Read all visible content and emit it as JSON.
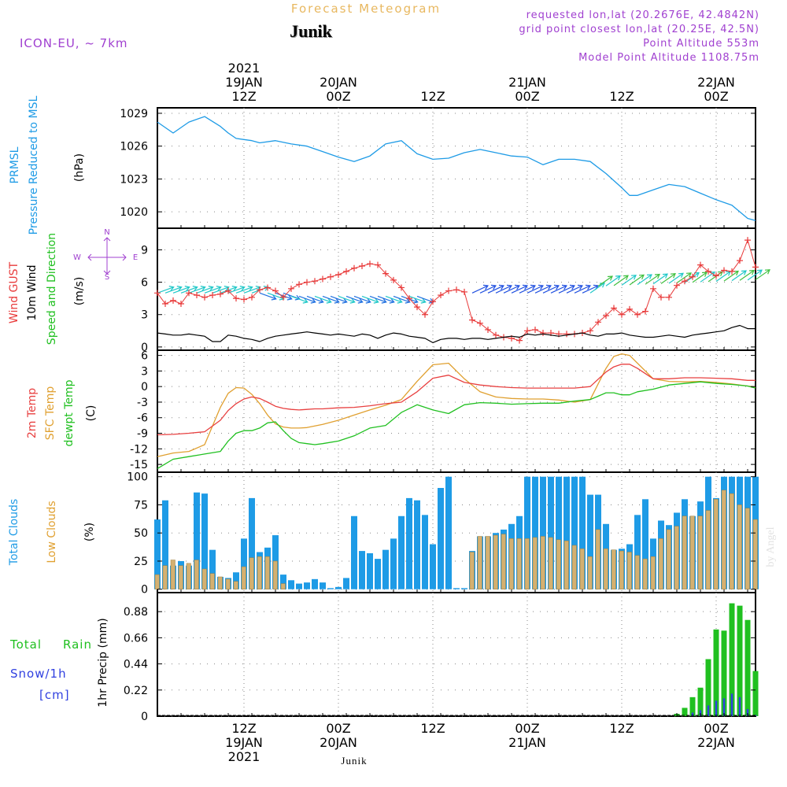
{
  "header": {
    "title": "Forecast Meteogram",
    "location": "Junik",
    "model": "ICON-EU, ~ 7km",
    "requested": "requested lon,lat (20.2676E, 42.4842N)",
    "gridpoint": "grid point closest lon,lat (20.25E, 42.5N)",
    "point_altitude": "Point Altitude 553m",
    "model_altitude": "Model Point Altitude 1108.75m",
    "footer_location": "Junik",
    "watermark": "by Angel"
  },
  "time_axis": {
    "top_year": "2021",
    "top_labels": [
      {
        "line1": "19JAN",
        "line2": "12Z",
        "hour": 18
      },
      {
        "line1": "20JAN",
        "line2": "00Z",
        "hour": 30
      },
      {
        "line1": "",
        "line2": "12Z",
        "hour": 42
      },
      {
        "line1": "21JAN",
        "line2": "00Z",
        "hour": 54
      },
      {
        "line1": "",
        "line2": "12Z",
        "hour": 66
      },
      {
        "line1": "22JAN",
        "line2": "00Z",
        "hour": 78
      }
    ],
    "bottom_labels": [
      {
        "line1": "12Z",
        "line2": "19JAN",
        "line3": "2021",
        "hour": 18
      },
      {
        "line1": "00Z",
        "line2": "20JAN",
        "line3": "",
        "hour": 30
      },
      {
        "line1": "12Z",
        "line2": "",
        "line3": "",
        "hour": 42
      },
      {
        "line1": "00Z",
        "line2": "21JAN",
        "line3": "",
        "hour": 54
      },
      {
        "line1": "12Z",
        "line2": "",
        "line3": "",
        "hour": 66
      },
      {
        "line1": "00Z",
        "line2": "22JAN",
        "line3": "",
        "hour": 78
      }
    ],
    "range_hours": [
      7,
      83
    ]
  },
  "panels": {
    "pressure": {
      "label1": "PRMSL",
      "label2": "Pressure Reduced to MSL",
      "unit": "(hPa)",
      "ticks": [
        "1020",
        "1023",
        "1026",
        "1029"
      ]
    },
    "wind": {
      "label_gust": "Wind GUST",
      "label_wind": "10m Wind",
      "label_speed": "Speed and Direction",
      "unit": "(m/s)",
      "compass_n": "N",
      "compass_s": "S",
      "compass_w": "W",
      "compass_e": "E",
      "ticks": [
        "0",
        "3",
        "6",
        "9"
      ]
    },
    "temp": {
      "label_2m": "2m Temp",
      "label_sfc": "SFC Temp",
      "label_dewpt": "dewpt Temp",
      "unit": "(C)",
      "ticks": [
        "-15",
        "-12",
        "-9",
        "-6",
        "-3",
        "0",
        "3",
        "6"
      ]
    },
    "clouds": {
      "label_total": "Total Clouds",
      "label_low": "Low Clouds",
      "unit": "(%)",
      "ticks": [
        "0",
        "25",
        "50",
        "75",
        "100"
      ]
    },
    "precip": {
      "label_total": "Total",
      "label_rain": "Rain",
      "label_snow": "Snow/1h",
      "label_cm": "[cm]",
      "unit": "1hr Precip (mm)",
      "ticks": [
        "0",
        "0.22",
        "0.44",
        "0.66",
        "0.88"
      ]
    }
  },
  "colors": {
    "pressure": "#1e9be6",
    "gust": "#e83a3a",
    "wind": "#000000",
    "temp2m": "#e84040",
    "sfc": "#e0a030",
    "dewpt": "#20c020",
    "total_cloud": "#1e9be6",
    "low_cloud": "#d4b070",
    "rain": "#20c020",
    "snow": "#3040e0",
    "purple": "#a040d0"
  },
  "chart_data": [
    {
      "type": "line",
      "title": "PRMSL Pressure Reduced to MSL",
      "ylabel": "(hPa)",
      "ylim": [
        1018.5,
        1029.5
      ],
      "x": [
        7,
        9,
        11,
        13,
        15,
        16,
        17,
        18,
        19,
        20,
        22,
        24,
        26,
        28,
        30,
        32,
        34,
        36,
        38,
        40,
        42,
        44,
        46,
        48,
        50,
        52,
        54,
        56,
        58,
        60,
        62,
        64,
        66,
        67,
        68,
        70,
        72,
        74,
        76,
        78,
        80,
        82,
        83
      ],
      "series": [
        {
          "name": "PRMSL",
          "values": [
            1028.2,
            1027.2,
            1028.2,
            1028.7,
            1027.8,
            1027.2,
            1026.7,
            1026.6,
            1026.5,
            1026.3,
            1026.5,
            1026.2,
            1026.0,
            1025.5,
            1025.0,
            1024.6,
            1025.1,
            1026.2,
            1026.5,
            1025.3,
            1024.8,
            1024.9,
            1025.4,
            1025.7,
            1025.4,
            1025.1,
            1025.0,
            1024.3,
            1024.8,
            1024.8,
            1024.6,
            1023.5,
            1022.2,
            1021.5,
            1021.5,
            1022.0,
            1022.5,
            1022.3,
            1021.7,
            1021.1,
            1020.6,
            1019.4,
            1019.2
          ]
        }
      ]
    },
    {
      "type": "line",
      "title": "Wind GUST / 10m Wind Speed and Direction",
      "ylabel": "(m/s)",
      "ylim": [
        -0.3,
        11
      ],
      "x": [
        7,
        8,
        9,
        10,
        11,
        12,
        13,
        14,
        15,
        16,
        17,
        18,
        19,
        20,
        21,
        22,
        23,
        24,
        25,
        26,
        27,
        28,
        29,
        30,
        31,
        32,
        33,
        34,
        35,
        36,
        37,
        38,
        39,
        40,
        41,
        42,
        43,
        44,
        45,
        46,
        47,
        48,
        49,
        50,
        51,
        52,
        53,
        54,
        55,
        56,
        57,
        58,
        59,
        60,
        61,
        62,
        63,
        64,
        65,
        66,
        67,
        68,
        69,
        70,
        71,
        72,
        73,
        74,
        75,
        76,
        77,
        78,
        79,
        80,
        81,
        82,
        83
      ],
      "series": [
        {
          "name": "Wind GUST",
          "values": [
            5.0,
            4.0,
            4.3,
            4.0,
            5.0,
            4.8,
            4.6,
            4.8,
            4.9,
            5.2,
            4.5,
            4.4,
            4.6,
            5.3,
            5.5,
            5.2,
            4.6,
            5.4,
            5.8,
            6.0,
            6.1,
            6.3,
            6.5,
            6.7,
            7.0,
            7.3,
            7.5,
            7.7,
            7.6,
            6.8,
            6.2,
            5.5,
            4.5,
            3.7,
            3.0,
            4.2,
            4.8,
            5.2,
            5.3,
            5.1,
            2.5,
            2.2,
            1.6,
            1.1,
            0.9,
            0.8,
            0.6,
            1.5,
            1.6,
            1.3,
            1.3,
            1.2,
            1.2,
            1.2,
            1.3,
            1.5,
            2.3,
            2.9,
            3.6,
            3.0,
            3.5,
            3.0,
            3.3,
            5.4,
            4.6,
            4.6,
            5.7,
            6.1,
            6.5,
            7.6,
            7.0,
            6.6,
            7.1,
            7.0,
            8.0,
            9.9,
            7.4
          ]
        },
        {
          "name": "10m Wind",
          "values": [
            1.3,
            1.2,
            1.1,
            1.1,
            1.2,
            1.1,
            1.0,
            0.5,
            0.5,
            1.1,
            1.0,
            0.8,
            0.7,
            0.5,
            0.8,
            1.0,
            1.1,
            1.2,
            1.3,
            1.4,
            1.3,
            1.2,
            1.1,
            1.2,
            1.1,
            1.0,
            1.2,
            1.1,
            0.8,
            1.1,
            1.3,
            1.2,
            1.0,
            0.9,
            0.8,
            0.4,
            0.7,
            0.8,
            0.8,
            0.7,
            0.8,
            0.8,
            0.7,
            0.8,
            0.9,
            1.0,
            0.9,
            1.2,
            1.1,
            1.2,
            1.1,
            1.0,
            1.1,
            1.2,
            1.3,
            1.1,
            1.0,
            1.2,
            1.2,
            1.3,
            1.1,
            1.0,
            0.9,
            0.9,
            1.0,
            1.1,
            1.0,
            0.9,
            1.1,
            1.2,
            1.3,
            1.4,
            1.5,
            1.8,
            2.0,
            1.7,
            1.7
          ]
        }
      ]
    },
    {
      "type": "line",
      "title": "2m Temp / SFC Temp / dewpt Temp",
      "ylabel": "(C)",
      "ylim": [
        -16.5,
        7
      ],
      "x": [
        7,
        9,
        11,
        13,
        15,
        16,
        17,
        18,
        19,
        20,
        21,
        22,
        23,
        24,
        25,
        26,
        27,
        28,
        30,
        32,
        34,
        36,
        38,
        40,
        42,
        44,
        46,
        48,
        50,
        52,
        54,
        56,
        58,
        60,
        62,
        64,
        65,
        66,
        67,
        68,
        70,
        72,
        74,
        76,
        78,
        80,
        82,
        83
      ],
      "series": [
        {
          "name": "2m Temp",
          "values": [
            -9.3,
            -9.2,
            -9.0,
            -8.7,
            -6.5,
            -4.6,
            -3.3,
            -2.4,
            -2.0,
            -2.3,
            -3.0,
            -3.8,
            -4.2,
            -4.4,
            -4.5,
            -4.4,
            -4.3,
            -4.3,
            -4.1,
            -4.0,
            -3.7,
            -3.3,
            -3.0,
            -1.0,
            1.6,
            2.2,
            0.8,
            0.3,
            0.0,
            -0.2,
            -0.3,
            -0.3,
            -0.3,
            -0.3,
            0.0,
            2.8,
            3.8,
            4.3,
            4.3,
            3.5,
            1.5,
            1.5,
            1.7,
            1.7,
            1.6,
            1.5,
            1.2,
            1.2
          ]
        },
        {
          "name": "SFC Temp",
          "values": [
            -13.5,
            -12.8,
            -12.5,
            -11.2,
            -4.0,
            -1.3,
            -0.2,
            -0.3,
            -1.5,
            -3.3,
            -5.5,
            -7.2,
            -7.8,
            -8.0,
            -8.0,
            -7.9,
            -7.6,
            -7.3,
            -6.5,
            -5.5,
            -4.5,
            -3.6,
            -2.5,
            1.0,
            4.2,
            4.5,
            1.5,
            -1.0,
            -2.0,
            -2.3,
            -2.4,
            -2.4,
            -2.6,
            -3.0,
            -2.5,
            3.5,
            5.8,
            6.3,
            6.0,
            4.5,
            1.5,
            1.0,
            0.9,
            1.0,
            0.8,
            0.5,
            0.1,
            -0.1
          ]
        },
        {
          "name": "dewpt Temp",
          "values": [
            -15.8,
            -14.0,
            -13.5,
            -13.0,
            -12.5,
            -10.5,
            -9.0,
            -8.5,
            -8.5,
            -8.0,
            -7.0,
            -6.8,
            -8.5,
            -10.0,
            -10.8,
            -11.0,
            -11.2,
            -11.0,
            -10.5,
            -9.5,
            -8.0,
            -7.5,
            -5.0,
            -3.5,
            -4.5,
            -5.2,
            -3.5,
            -3.1,
            -3.2,
            -3.4,
            -3.3,
            -3.2,
            -3.2,
            -2.8,
            -2.5,
            -1.2,
            -1.2,
            -1.6,
            -1.6,
            -1.0,
            -0.5,
            0.3,
            0.6,
            0.9,
            0.6,
            0.4,
            0.1,
            -0.3
          ]
        }
      ]
    },
    {
      "type": "bar",
      "title": "Total Clouds / Low Clouds",
      "ylabel": "(%)",
      "ylim": [
        -3,
        104
      ],
      "x": [
        7,
        8,
        9,
        10,
        11,
        12,
        13,
        14,
        15,
        16,
        17,
        18,
        19,
        20,
        21,
        22,
        23,
        24,
        25,
        26,
        27,
        28,
        29,
        30,
        31,
        32,
        33,
        34,
        35,
        36,
        37,
        38,
        39,
        40,
        41,
        42,
        43,
        44,
        45,
        46,
        47,
        48,
        49,
        50,
        51,
        52,
        53,
        54,
        55,
        56,
        57,
        58,
        59,
        60,
        61,
        62,
        63,
        64,
        65,
        66,
        67,
        68,
        69,
        70,
        71,
        72,
        73,
        74,
        75,
        76,
        77,
        78,
        79,
        80,
        81,
        82,
        83
      ],
      "series": [
        {
          "name": "Total Clouds",
          "values": [
            62,
            79,
            21,
            25,
            21,
            86,
            85,
            35,
            11,
            10,
            15,
            45,
            81,
            33,
            37,
            48,
            13,
            8,
            5,
            6,
            9,
            6,
            1,
            2,
            10,
            65,
            34,
            32,
            27,
            35,
            45,
            65,
            81,
            79,
            66,
            40,
            90,
            100,
            1,
            1,
            34,
            47,
            47,
            50,
            53,
            58,
            65,
            100,
            100,
            100,
            100,
            100,
            100,
            100,
            100,
            84,
            84,
            58,
            35,
            36,
            40,
            66,
            80,
            45,
            61,
            57,
            68,
            80,
            65,
            78,
            100,
            81,
            100,
            100,
            100,
            100,
            100
          ]
        },
        {
          "name": "Low Clouds",
          "values": [
            13,
            21,
            26,
            21,
            23,
            26,
            18,
            14,
            11,
            9,
            7,
            20,
            28,
            29,
            29,
            25,
            5,
            0,
            0,
            0,
            0,
            0,
            0,
            0,
            0,
            0,
            0,
            0,
            0,
            0,
            0,
            0,
            0,
            0,
            0,
            0,
            0,
            0,
            0,
            0,
            33,
            47,
            47,
            48,
            49,
            45,
            45,
            45,
            46,
            47,
            46,
            44,
            43,
            39,
            36,
            29,
            53,
            36,
            35,
            34,
            33,
            30,
            27,
            29,
            45,
            53,
            56,
            65,
            65,
            65,
            70,
            80,
            88,
            85,
            75,
            72,
            62
          ]
        }
      ]
    },
    {
      "type": "bar",
      "title": "1hr Precip",
      "ylabel": "1hr Precip (mm)",
      "ylim": [
        0,
        1.04
      ],
      "x": [
        73,
        74,
        75,
        76,
        77,
        78,
        79,
        80,
        81,
        82,
        83
      ],
      "series": [
        {
          "name": "Total Rain",
          "values": [
            0.02,
            0.07,
            0.16,
            0.24,
            0.48,
            0.73,
            0.72,
            0.95,
            0.93,
            0.81,
            0.38
          ]
        },
        {
          "name": "Snow/1h",
          "values": [
            0.0,
            0.0,
            0.03,
            0.05,
            0.09,
            0.13,
            0.15,
            0.19,
            0.16,
            0.06,
            0.01
          ]
        }
      ]
    }
  ]
}
